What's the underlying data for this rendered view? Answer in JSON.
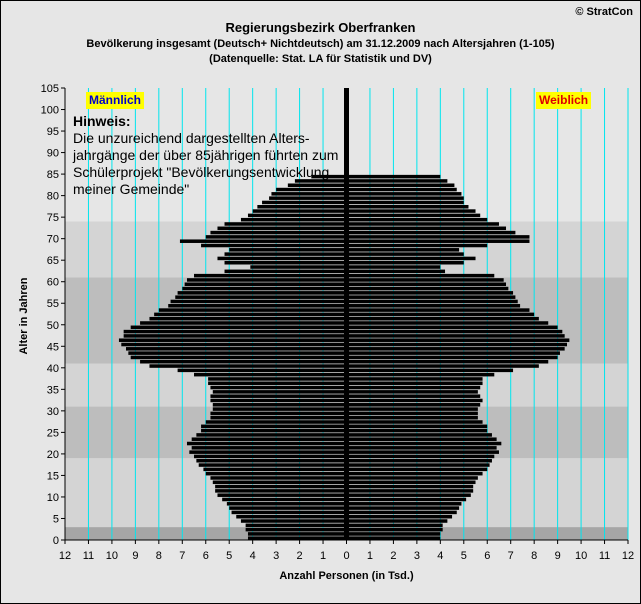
{
  "header": {
    "title": "Regierungsbezirk Oberfranken",
    "subtitle1": "Bevölkerung  insgesamt (Deutsch+ Nichtdeutsch) am 31.12.2009 nach Altersjahren (1-105)",
    "subtitle2": "(Datenquelle: Stat. LA für Statistik und DV)",
    "copyright": "© StratCon"
  },
  "legend": {
    "male": "Männlich",
    "female": "Weiblich"
  },
  "note": {
    "heading": "Hinweis:",
    "lines": [
      "Die unzureichend dargestellten Alters-",
      "jahrgänge der über 85jährigen führten zum",
      "Schülerprojekt \"Bevölkerungsentwicklung",
      "meiner Gemeinde\""
    ]
  },
  "colors": {
    "bar": "#000000",
    "gridline": "#00e5ee",
    "band_dark": "#a6a6a6",
    "band_mid": "#bdbdbd",
    "band_light": "#d4d4d4",
    "band_top": "#e6e6e6",
    "male_label": "#0000cc",
    "female_label": "#dd0000",
    "label_bg": "#ffff00"
  },
  "chart_data": {
    "type": "bar",
    "orientation": "horizontal",
    "title": "Regierungsbezirk Oberfranken",
    "xlabel": "Anzahl Personen (in Tsd.)",
    "ylabel": "Alter in Jahren",
    "xlim": [
      -12,
      12
    ],
    "ylim": [
      0,
      105
    ],
    "x_tick_labels": [
      "12",
      "11",
      "10",
      "9",
      "8",
      "7",
      "6",
      "5",
      "4",
      "3",
      "2",
      "1",
      "0",
      "1",
      "2",
      "3",
      "4",
      "5",
      "6",
      "7",
      "8",
      "9",
      "10",
      "11",
      "12"
    ],
    "y_ticks": [
      0,
      5,
      10,
      15,
      20,
      25,
      30,
      35,
      40,
      45,
      50,
      55,
      60,
      65,
      70,
      75,
      80,
      85,
      90,
      95,
      100,
      105
    ],
    "grid": "vertical",
    "ages": [
      0,
      1,
      2,
      3,
      4,
      5,
      6,
      7,
      8,
      9,
      10,
      11,
      12,
      13,
      14,
      15,
      16,
      17,
      18,
      19,
      20,
      21,
      22,
      23,
      24,
      25,
      26,
      27,
      28,
      29,
      30,
      31,
      32,
      33,
      34,
      35,
      36,
      37,
      38,
      39,
      40,
      41,
      42,
      43,
      44,
      45,
      46,
      47,
      48,
      49,
      50,
      51,
      52,
      53,
      54,
      55,
      56,
      57,
      58,
      59,
      60,
      61,
      62,
      63,
      64,
      65,
      66,
      67,
      68,
      69,
      70,
      71,
      72,
      73,
      74,
      75,
      76,
      77,
      78,
      79,
      80,
      81,
      82,
      83,
      84
    ],
    "series": [
      {
        "name": "Männlich",
        "values": [
          4.2,
          4.2,
          4.3,
          4.3,
          4.5,
          4.7,
          4.9,
          5.0,
          5.1,
          5.3,
          5.5,
          5.6,
          5.6,
          5.7,
          5.8,
          6.0,
          6.1,
          6.3,
          6.4,
          6.5,
          6.7,
          6.6,
          6.8,
          6.6,
          6.4,
          6.2,
          6.2,
          6.0,
          5.8,
          5.8,
          5.7,
          5.7,
          5.8,
          5.8,
          5.7,
          5.8,
          5.9,
          5.9,
          6.5,
          7.2,
          8.4,
          8.8,
          9.2,
          9.3,
          9.4,
          9.6,
          9.7,
          9.5,
          9.5,
          9.2,
          8.8,
          8.4,
          8.2,
          8.0,
          7.6,
          7.5,
          7.3,
          7.2,
          7.0,
          6.9,
          6.8,
          6.5,
          5.2,
          4.1,
          5.2,
          5.5,
          5.2,
          5.0,
          6.2,
          7.1,
          6.0,
          5.8,
          5.5,
          5.2,
          4.5,
          4.2,
          4.0,
          3.8,
          3.6,
          3.3,
          3.2,
          3.0,
          2.5,
          2.2,
          1.5
        ]
      },
      {
        "name": "Weiblich",
        "values": [
          4.0,
          4.0,
          4.1,
          4.1,
          4.3,
          4.5,
          4.7,
          4.8,
          4.9,
          5.1,
          5.3,
          5.4,
          5.4,
          5.5,
          5.6,
          5.8,
          6.0,
          6.1,
          6.2,
          6.3,
          6.5,
          6.4,
          6.6,
          6.4,
          6.2,
          6.0,
          6.0,
          5.8,
          5.6,
          5.6,
          5.6,
          5.7,
          5.8,
          5.7,
          5.6,
          5.7,
          5.8,
          5.8,
          6.3,
          7.1,
          8.2,
          8.6,
          9.0,
          9.1,
          9.3,
          9.4,
          9.5,
          9.3,
          9.2,
          9.0,
          8.6,
          8.2,
          8.0,
          7.8,
          7.4,
          7.3,
          7.2,
          7.1,
          6.9,
          6.8,
          6.7,
          6.3,
          4.2,
          4.0,
          5.0,
          5.5,
          5.0,
          4.8,
          6.0,
          7.8,
          7.8,
          7.2,
          6.8,
          6.5,
          6.0,
          5.7,
          5.5,
          5.2,
          5.0,
          5.0,
          4.9,
          4.7,
          4.6,
          4.3,
          4.0
        ]
      }
    ]
  }
}
